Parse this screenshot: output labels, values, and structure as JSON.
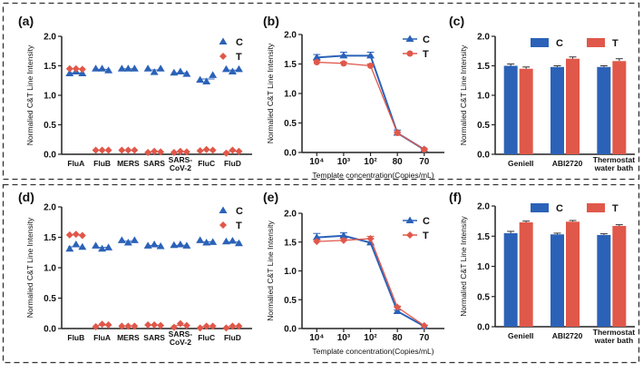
{
  "colors": {
    "C": "#2b62b8",
    "T": "#e0584a",
    "axis": "#222222"
  },
  "chart_data": [
    {
      "id": "a",
      "panel_label": "(a)",
      "type": "scatter",
      "ylabel": "Normalied C&T Line Intensity",
      "xlabel": "",
      "ylim": [
        0,
        2.0
      ],
      "yticks": [
        "0.0",
        "0.5",
        "1.0",
        "1.5",
        "2.0"
      ],
      "categories": [
        "FluA",
        "FluB",
        "MERS",
        "SARS",
        "SARS-\nCoV-2",
        "FluC",
        "FluD"
      ],
      "legend": [
        "C",
        "T"
      ],
      "legend_position": "top-right",
      "series": [
        {
          "name": "C",
          "replicates": [
            [
              1.37,
              1.4,
              1.37
            ],
            [
              1.45,
              1.45,
              1.42
            ],
            [
              1.45,
              1.45,
              1.45
            ],
            [
              1.45,
              1.39,
              1.45
            ],
            [
              1.38,
              1.4,
              1.36
            ],
            [
              1.26,
              1.23,
              1.34
            ],
            [
              1.44,
              1.4,
              1.44
            ]
          ]
        },
        {
          "name": "T",
          "replicates": [
            [
              1.45,
              1.45,
              1.44
            ],
            [
              0.07,
              0.07,
              0.07
            ],
            [
              0.07,
              0.07,
              0.07
            ],
            [
              0.03,
              0.05,
              0.04
            ],
            [
              0.03,
              0.05,
              0.04
            ],
            [
              0.06,
              0.08,
              0.07
            ],
            [
              0.02,
              0.07,
              0.05
            ]
          ]
        }
      ]
    },
    {
      "id": "b",
      "panel_label": "(b)",
      "type": "line",
      "ylabel": "Normalied C&T Line Intensity",
      "xlabel": "Template concentration(Copies/mL)",
      "ylim": [
        0,
        2.0
      ],
      "yticks": [
        "0.0",
        "0.5",
        "1.0",
        "1.5",
        "2.0"
      ],
      "categories": [
        "10⁴",
        "10³",
        "10²",
        "80",
        "70"
      ],
      "legend": [
        "C",
        "T"
      ],
      "legend_position": "top-right",
      "series": [
        {
          "name": "C",
          "values": [
            1.61,
            1.64,
            1.64,
            0.33,
            0.05
          ],
          "errors": [
            0.05,
            0.06,
            0.06,
            0.05,
            0.01
          ]
        },
        {
          "name": "T",
          "values": [
            1.53,
            1.51,
            1.47,
            0.33,
            0.05
          ],
          "errors": [
            0.03,
            0.02,
            0.03,
            0.02,
            0.01
          ]
        }
      ]
    },
    {
      "id": "c",
      "panel_label": "(c)",
      "type": "bar",
      "ylabel": "Normalied C&T Line Intensity",
      "xlabel": "",
      "ylim": [
        0,
        2.0
      ],
      "yticks": [
        "0.0",
        "0.5",
        "1.0",
        "1.5",
        "2.0"
      ],
      "categories": [
        "GenieII",
        "ABI2720",
        "Thermostat\nwater bath"
      ],
      "legend": [
        "C",
        "T"
      ],
      "legend_position": "top",
      "series": [
        {
          "name": "C",
          "values": [
            1.5,
            1.48,
            1.48
          ],
          "errors": [
            0.03,
            0.02,
            0.02
          ]
        },
        {
          "name": "T",
          "values": [
            1.45,
            1.62,
            1.58
          ],
          "errors": [
            0.03,
            0.03,
            0.04
          ]
        }
      ]
    },
    {
      "id": "d",
      "panel_label": "(d)",
      "type": "scatter",
      "ylabel": "Normalied C&T Line Intensity",
      "xlabel": "",
      "ylim": [
        0,
        2.0
      ],
      "yticks": [
        "0.0",
        "0.5",
        "1.0",
        "1.5",
        "2.0"
      ],
      "categories": [
        "FluB",
        "FluA",
        "MERS",
        "SARS",
        "SARS-\nCoV-2",
        "FluC",
        "FluD"
      ],
      "legend": [
        "C",
        "T"
      ],
      "legend_position": "top-right",
      "series": [
        {
          "name": "C",
          "replicates": [
            [
              1.31,
              1.38,
              1.34
            ],
            [
              1.36,
              1.31,
              1.33
            ],
            [
              1.45,
              1.41,
              1.45
            ],
            [
              1.36,
              1.38,
              1.35
            ],
            [
              1.37,
              1.38,
              1.36
            ],
            [
              1.45,
              1.41,
              1.42
            ],
            [
              1.43,
              1.44,
              1.4
            ]
          ]
        },
        {
          "name": "T",
          "replicates": [
            [
              1.54,
              1.55,
              1.53
            ],
            [
              0.03,
              0.07,
              0.06
            ],
            [
              0.04,
              0.04,
              0.04
            ],
            [
              0.06,
              0.06,
              0.05
            ],
            [
              0.02,
              0.08,
              0.05
            ],
            [
              0.01,
              0.04,
              0.04
            ],
            [
              0.01,
              0.04,
              0.04
            ]
          ]
        }
      ]
    },
    {
      "id": "e",
      "panel_label": "(e)",
      "type": "line",
      "ylabel": "Normalied C&T Line Intensity",
      "xlabel": "Template concentration(Copies/mL)",
      "ylim": [
        0,
        2.0
      ],
      "yticks": [
        "0.0",
        "0.5",
        "1.0",
        "1.5",
        "2.0"
      ],
      "categories": [
        "10⁴",
        "10³",
        "10²",
        "80",
        "70"
      ],
      "legend": [
        "C",
        "T"
      ],
      "legend_position": "top-right",
      "series": [
        {
          "name": "C",
          "values": [
            1.58,
            1.61,
            1.49,
            0.3,
            0.04
          ],
          "errors": [
            0.07,
            0.05,
            0.07,
            0.02,
            0.01
          ]
        },
        {
          "name": "T",
          "values": [
            1.51,
            1.53,
            1.56,
            0.37,
            0.05
          ],
          "errors": [
            0.03,
            0.03,
            0.04,
            0.02,
            0.01
          ]
        }
      ]
    },
    {
      "id": "f",
      "panel_label": "(f)",
      "type": "bar",
      "ylabel": "Normalied C&T Line Intensity",
      "xlabel": "",
      "ylim": [
        0,
        2.0
      ],
      "yticks": [
        "0.0",
        "0.5",
        "1.0",
        "1.5",
        "2.0"
      ],
      "categories": [
        "GenieII",
        "ABI2720",
        "Thermostat\nwater bath"
      ],
      "legend": [
        "C",
        "T"
      ],
      "legend_position": "top",
      "series": [
        {
          "name": "C",
          "values": [
            1.55,
            1.53,
            1.52
          ],
          "errors": [
            0.03,
            0.02,
            0.02
          ]
        },
        {
          "name": "T",
          "values": [
            1.73,
            1.74,
            1.67
          ],
          "errors": [
            0.02,
            0.02,
            0.02
          ]
        }
      ]
    }
  ]
}
